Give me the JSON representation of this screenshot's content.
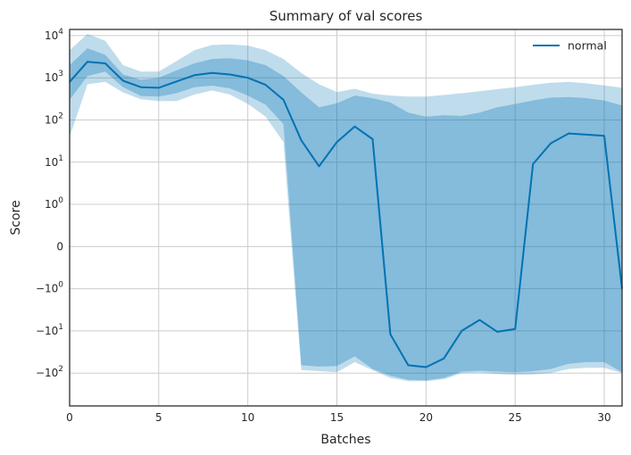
{
  "chart_data": {
    "type": "line",
    "title": "Summary of val scores",
    "xlabel": "Batches",
    "ylabel": "Score",
    "xlim": [
      0,
      31
    ],
    "y_scale": "symlog",
    "linthresh": 1,
    "ylim": [
      -600,
      14000
    ],
    "grid": true,
    "legend_position": "top-right",
    "x_ticks": [
      0,
      5,
      10,
      15,
      20,
      25,
      30
    ],
    "y_ticks": [
      {
        "value": 10000,
        "base": "10",
        "exp": "4"
      },
      {
        "value": 1000,
        "base": "10",
        "exp": "3"
      },
      {
        "value": 100,
        "base": "10",
        "exp": "2"
      },
      {
        "value": 10,
        "base": "10",
        "exp": "1"
      },
      {
        "value": 1,
        "base": "10",
        "exp": "0"
      },
      {
        "value": 0,
        "base": "0",
        "exp": ""
      },
      {
        "value": -1,
        "base": "−10",
        "exp": "0"
      },
      {
        "value": -10,
        "base": "−10",
        "exp": "1"
      },
      {
        "value": -100,
        "base": "−10",
        "exp": "2"
      }
    ],
    "x": [
      0,
      1,
      2,
      3,
      4,
      5,
      6,
      7,
      8,
      9,
      10,
      11,
      12,
      13,
      14,
      15,
      16,
      17,
      18,
      19,
      20,
      21,
      22,
      23,
      24,
      25,
      26,
      27,
      28,
      29,
      30,
      31
    ],
    "series": [
      {
        "name": "normal",
        "color": "#0072b2",
        "band_color": "#0072b2",
        "values": [
          800,
          2400,
          2200,
          850,
          600,
          580,
          820,
          1150,
          1300,
          1200,
          1000,
          680,
          300,
          33,
          8,
          30,
          70,
          35,
          -12,
          -65,
          -72,
          -45,
          -10,
          -5.5,
          -10.5,
          -9,
          9,
          28,
          48,
          45,
          42,
          -1
        ],
        "band_inner_upper": [
          2000,
          5000,
          3500,
          1200,
          900,
          1000,
          1500,
          2200,
          2800,
          2900,
          2600,
          2000,
          1100,
          450,
          200,
          250,
          380,
          330,
          260,
          150,
          120,
          130,
          125,
          150,
          200,
          240,
          290,
          340,
          350,
          330,
          290,
          220
        ],
        "band_inner_lower": [
          300,
          1100,
          1400,
          600,
          370,
          360,
          430,
          600,
          650,
          560,
          380,
          230,
          80,
          -65,
          -70,
          -68,
          -40,
          -80,
          -115,
          -145,
          -148,
          -130,
          -92,
          -88,
          -92,
          -95,
          -90,
          -80,
          -60,
          -55,
          -55,
          -95
        ],
        "band_outer_upper": [
          4500,
          11000,
          7500,
          2000,
          1400,
          1400,
          2500,
          4500,
          6000,
          6200,
          5800,
          4500,
          2800,
          1300,
          700,
          460,
          550,
          420,
          380,
          360,
          360,
          390,
          430,
          480,
          540,
          600,
          680,
          760,
          800,
          740,
          660,
          580
        ],
        "band_outer_lower": [
          40,
          700,
          800,
          450,
          310,
          280,
          280,
          400,
          500,
          400,
          240,
          120,
          30,
          -85,
          -90,
          -95,
          -55,
          -85,
          -130,
          -155,
          -155,
          -140,
          -100,
          -98,
          -105,
          -110,
          -108,
          -100,
          -80,
          -75,
          -75,
          -100
        ]
      }
    ]
  }
}
